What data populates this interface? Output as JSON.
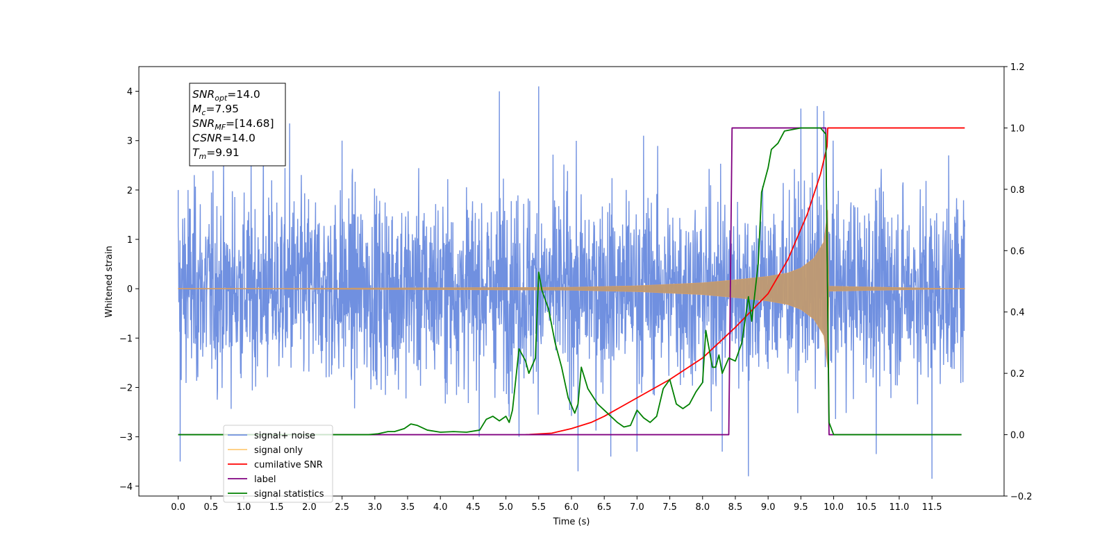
{
  "chart_data": {
    "type": "line",
    "title": "",
    "xlabel": "Time (s)",
    "ylabel": "Whitened strain",
    "y2label": "",
    "xlim": [
      -0.6,
      12.6
    ],
    "ylim": [
      -4.2,
      4.5
    ],
    "y2lim": [
      -0.2,
      1.2
    ],
    "xticks": [
      "0.0",
      "0.5",
      "1.0",
      "1.5",
      "2.0",
      "2.5",
      "3.0",
      "3.5",
      "4.0",
      "4.5",
      "5.0",
      "5.5",
      "6.0",
      "6.5",
      "7.0",
      "7.5",
      "8.0",
      "8.5",
      "9.0",
      "9.5",
      "10.0",
      "10.5",
      "11.0",
      "11.5"
    ],
    "yticks": [
      "4",
      "3",
      "2",
      "1",
      "0",
      "−1",
      "−2",
      "−3",
      "−4"
    ],
    "y2ticks": [
      "1.2",
      "1.0",
      "0.8",
      "0.6",
      "0.4",
      "0.2",
      "0.0",
      "−0.2"
    ],
    "grid": false,
    "legend_position": "lower-left",
    "annotation": {
      "lines": [
        {
          "base": "SNR",
          "sub": "opt",
          "rest": "=14.0"
        },
        {
          "base": "M",
          "sub": "c",
          "rest": "=7.95"
        },
        {
          "base": "SNR",
          "sub": "MF",
          "rest": "=[14.68]"
        },
        {
          "base": "CSNR",
          "sub": "",
          "rest": "=14.0"
        },
        {
          "base": "T",
          "sub": "m",
          "rest": "=9.91"
        }
      ]
    },
    "series": [
      {
        "name": "signal+ noise",
        "color": "#7090e0",
        "axis": "left",
        "style": "noise",
        "x_range": [
          0.0,
          12.0
        ],
        "typical_amplitude": 1.0,
        "peaks": [
          {
            "x": 0.0,
            "y": 2.0
          },
          {
            "x": 0.03,
            "y": -3.5
          },
          {
            "x": 0.15,
            "y": 2.0
          },
          {
            "x": 1.3,
            "y": 3.0
          },
          {
            "x": 1.7,
            "y": 3.35
          },
          {
            "x": 2.5,
            "y": 3.0
          },
          {
            "x": 4.9,
            "y": 4.0
          },
          {
            "x": 5.2,
            "y": -3.0
          },
          {
            "x": 5.5,
            "y": 4.1
          },
          {
            "x": 6.1,
            "y": -3.7
          },
          {
            "x": 6.6,
            "y": -3.4
          },
          {
            "x": 7.0,
            "y": -3.3
          },
          {
            "x": 7.1,
            "y": 3.1
          },
          {
            "x": 8.3,
            "y": -3.3
          },
          {
            "x": 8.7,
            "y": -3.8
          },
          {
            "x": 9.5,
            "y": 3.65
          },
          {
            "x": 9.75,
            "y": 3.7
          },
          {
            "x": 9.85,
            "y": 3.6
          },
          {
            "x": 10.65,
            "y": -3.35
          },
          {
            "x": 11.5,
            "y": -3.85
          }
        ]
      },
      {
        "name": "signal only",
        "color": "#e0a060",
        "axis": "left",
        "style": "chirp",
        "points": [
          [
            0.0,
            0.0
          ],
          [
            6.0,
            0.03
          ],
          [
            7.0,
            0.06
          ],
          [
            8.0,
            0.12
          ],
          [
            8.5,
            0.18
          ],
          [
            9.0,
            0.25
          ],
          [
            9.3,
            0.32
          ],
          [
            9.5,
            0.42
          ],
          [
            9.7,
            0.62
          ],
          [
            9.85,
            0.95
          ],
          [
            9.91,
            1.6
          ],
          [
            9.93,
            0.05
          ],
          [
            12.0,
            0.0
          ]
        ]
      },
      {
        "name": "cumilative SNR",
        "color": "#ff0000",
        "axis": "right",
        "points": [
          [
            5.3,
            0.0
          ],
          [
            5.7,
            0.005
          ],
          [
            6.0,
            0.02
          ],
          [
            6.3,
            0.04
          ],
          [
            6.5,
            0.06
          ],
          [
            7.0,
            0.12
          ],
          [
            7.5,
            0.18
          ],
          [
            8.0,
            0.25
          ],
          [
            8.5,
            0.35
          ],
          [
            9.0,
            0.46
          ],
          [
            9.3,
            0.57
          ],
          [
            9.6,
            0.72
          ],
          [
            9.8,
            0.85
          ],
          [
            9.9,
            0.94
          ],
          [
            9.91,
            1.0
          ],
          [
            12.0,
            1.0
          ]
        ]
      },
      {
        "name": "label",
        "color": "#800080",
        "axis": "right",
        "points": [
          [
            0.0,
            0.0
          ],
          [
            8.4,
            0.0
          ],
          [
            8.45,
            1.0
          ],
          [
            9.88,
            1.0
          ],
          [
            9.93,
            0.0
          ],
          [
            11.95,
            0.0
          ]
        ]
      },
      {
        "name": "signal statistics",
        "color": "#008000",
        "axis": "right",
        "points": [
          [
            0.0,
            0.0
          ],
          [
            2.9,
            0.0
          ],
          [
            3.05,
            0.003
          ],
          [
            3.2,
            0.01
          ],
          [
            3.3,
            0.01
          ],
          [
            3.45,
            0.02
          ],
          [
            3.55,
            0.035
          ],
          [
            3.65,
            0.03
          ],
          [
            3.8,
            0.015
          ],
          [
            4.0,
            0.008
          ],
          [
            4.2,
            0.01
          ],
          [
            4.4,
            0.008
          ],
          [
            4.6,
            0.015
          ],
          [
            4.7,
            0.05
          ],
          [
            4.8,
            0.06
          ],
          [
            4.9,
            0.045
          ],
          [
            5.0,
            0.06
          ],
          [
            5.05,
            0.04
          ],
          [
            5.1,
            0.08
          ],
          [
            5.2,
            0.28
          ],
          [
            5.3,
            0.24
          ],
          [
            5.35,
            0.2
          ],
          [
            5.45,
            0.25
          ],
          [
            5.5,
            0.53
          ],
          [
            5.55,
            0.47
          ],
          [
            5.65,
            0.41
          ],
          [
            5.75,
            0.3
          ],
          [
            5.85,
            0.22
          ],
          [
            5.95,
            0.12
          ],
          [
            6.05,
            0.07
          ],
          [
            6.1,
            0.1
          ],
          [
            6.15,
            0.22
          ],
          [
            6.25,
            0.15
          ],
          [
            6.4,
            0.1
          ],
          [
            6.5,
            0.08
          ],
          [
            6.6,
            0.06
          ],
          [
            6.7,
            0.04
          ],
          [
            6.8,
            0.025
          ],
          [
            6.9,
            0.03
          ],
          [
            7.0,
            0.08
          ],
          [
            7.1,
            0.055
          ],
          [
            7.2,
            0.04
          ],
          [
            7.3,
            0.06
          ],
          [
            7.4,
            0.15
          ],
          [
            7.5,
            0.18
          ],
          [
            7.6,
            0.1
          ],
          [
            7.7,
            0.085
          ],
          [
            7.8,
            0.1
          ],
          [
            7.9,
            0.14
          ],
          [
            8.0,
            0.17
          ],
          [
            8.05,
            0.34
          ],
          [
            8.15,
            0.22
          ],
          [
            8.2,
            0.22
          ],
          [
            8.25,
            0.26
          ],
          [
            8.3,
            0.2
          ],
          [
            8.4,
            0.25
          ],
          [
            8.5,
            0.24
          ],
          [
            8.6,
            0.3
          ],
          [
            8.7,
            0.45
          ],
          [
            8.75,
            0.37
          ],
          [
            8.85,
            0.56
          ],
          [
            8.9,
            0.79
          ],
          [
            9.0,
            0.87
          ],
          [
            9.05,
            0.93
          ],
          [
            9.15,
            0.95
          ],
          [
            9.25,
            0.99
          ],
          [
            9.5,
            1.0
          ],
          [
            9.8,
            1.0
          ],
          [
            9.88,
            0.98
          ],
          [
            9.93,
            0.04
          ],
          [
            10.0,
            0.0
          ],
          [
            11.95,
            0.0
          ]
        ]
      }
    ]
  }
}
